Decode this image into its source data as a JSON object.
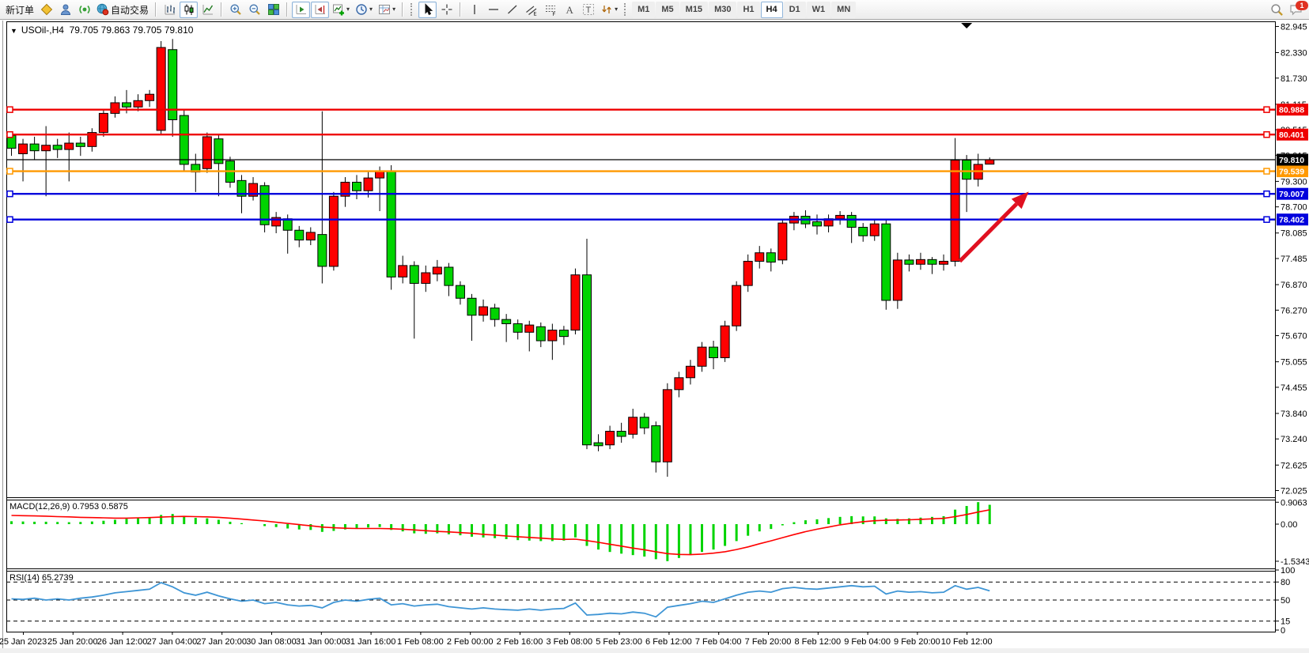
{
  "toolbar": {
    "new_order": "新订单",
    "auto_trading": "自动交易",
    "timeframes": [
      "M1",
      "M5",
      "M15",
      "M30",
      "H1",
      "H4",
      "D1",
      "W1",
      "MN"
    ],
    "active_timeframe": "H4",
    "notification_badge": "1"
  },
  "chart": {
    "symbol_title": "USOil-,H4",
    "ohlc_readout": "79.705 79.863 79.705 79.810",
    "price_axis_labels": [
      "82.945",
      "82.330",
      "81.730",
      "81.115",
      "80.515",
      "79.915",
      "79.300",
      "78.700",
      "78.085",
      "77.485",
      "76.870",
      "76.270",
      "75.670",
      "75.055",
      "74.455",
      "73.840",
      "73.240",
      "72.625",
      "72.025"
    ],
    "time_axis_labels": [
      "25 Jan 2023",
      "25 Jan 20:00",
      "26 Jan 12:00",
      "27 Jan 04:00",
      "27 Jan 20:00",
      "30 Jan 08:00",
      "31 Jan 00:00",
      "31 Jan 16:00",
      "1 Feb 08:00",
      "2 Feb 00:00",
      "2 Feb 16:00",
      "3 Feb 08:00",
      "5 Feb 23:00",
      "6 Feb 12:00",
      "7 Feb 04:00",
      "7 Feb 20:00",
      "8 Feb 12:00",
      "9 Feb 04:00",
      "9 Feb 20:00",
      "10 Feb 12:00"
    ],
    "price_lines": [
      {
        "price": 80.988,
        "label": "80.988",
        "color": "#ee0000"
      },
      {
        "price": 80.401,
        "label": "80.401",
        "color": "#ee0000"
      },
      {
        "price": 79.539,
        "label": "79.539",
        "color": "#ff9900"
      },
      {
        "price": 79.007,
        "label": "79.007",
        "color": "#0000dd"
      },
      {
        "price": 78.402,
        "label": "78.402",
        "color": "#0000dd"
      }
    ],
    "current_price": {
      "price": 79.81,
      "label": "79.810",
      "color": "#000000"
    }
  },
  "macd_panel": {
    "label": "MACD(12,26,9) 0.7953 0.5875",
    "scale_labels": [
      "0.9063",
      "0.00",
      "-1.5343"
    ]
  },
  "rsi_panel": {
    "label": "RSI(14) 65.2739",
    "scale_labels": [
      "100",
      "80",
      "50",
      "15",
      "0"
    ]
  },
  "chart_data": {
    "type": "candlestick",
    "symbol": "USOil",
    "timeframe": "H4",
    "title": "USOil-,H4 79.705 79.863 79.705 79.810",
    "note": "Chinese color convention: red = bullish, green = bearish",
    "up_color": "#fe0000",
    "down_color": "#00d400",
    "ylim": [
      72.025,
      82.945
    ],
    "ohlc": [
      [
        80.38,
        80.45,
        79.9,
        80.08
      ],
      [
        79.95,
        80.3,
        79.3,
        80.18
      ],
      [
        80.18,
        80.35,
        79.8,
        80.02
      ],
      [
        80.02,
        80.6,
        78.95,
        80.15
      ],
      [
        80.15,
        80.3,
        79.85,
        80.05
      ],
      [
        80.05,
        80.45,
        79.3,
        80.2
      ],
      [
        80.2,
        80.35,
        79.9,
        80.12
      ],
      [
        80.12,
        80.55,
        80.0,
        80.45
      ],
      [
        80.45,
        81.0,
        80.35,
        80.9
      ],
      [
        80.9,
        81.3,
        80.8,
        81.15
      ],
      [
        81.15,
        81.45,
        80.9,
        81.05
      ],
      [
        81.05,
        81.35,
        80.95,
        81.2
      ],
      [
        81.2,
        81.45,
        81.05,
        81.35
      ],
      [
        80.5,
        82.6,
        80.4,
        82.45
      ],
      [
        82.4,
        82.65,
        80.35,
        80.75
      ],
      [
        80.85,
        81.0,
        79.55,
        79.7
      ],
      [
        79.7,
        79.95,
        79.05,
        79.52
      ],
      [
        79.6,
        80.45,
        79.5,
        80.35
      ],
      [
        80.3,
        80.42,
        78.95,
        79.72
      ],
      [
        79.78,
        79.88,
        79.15,
        79.28
      ],
      [
        79.32,
        79.45,
        78.55,
        78.95
      ],
      [
        78.95,
        79.4,
        78.85,
        79.25
      ],
      [
        79.2,
        79.28,
        78.1,
        78.28
      ],
      [
        78.25,
        78.58,
        78.08,
        78.45
      ],
      [
        78.42,
        78.52,
        77.6,
        78.15
      ],
      [
        78.15,
        78.25,
        77.75,
        77.92
      ],
      [
        77.92,
        78.22,
        77.8,
        78.1
      ],
      [
        78.05,
        80.95,
        76.9,
        77.3
      ],
      [
        77.3,
        79.05,
        77.2,
        78.95
      ],
      [
        78.95,
        79.4,
        78.7,
        79.28
      ],
      [
        79.28,
        79.45,
        78.88,
        79.08
      ],
      [
        79.08,
        79.52,
        78.92,
        79.38
      ],
      [
        79.38,
        79.65,
        78.6,
        79.55
      ],
      [
        79.55,
        79.68,
        76.75,
        77.05
      ],
      [
        77.05,
        77.55,
        76.9,
        77.32
      ],
      [
        77.32,
        77.42,
        75.6,
        76.9
      ],
      [
        76.9,
        77.32,
        76.7,
        77.15
      ],
      [
        77.12,
        77.45,
        76.95,
        77.28
      ],
      [
        77.28,
        77.38,
        76.6,
        76.85
      ],
      [
        76.85,
        76.95,
        76.4,
        76.55
      ],
      [
        76.55,
        76.65,
        75.55,
        76.15
      ],
      [
        76.15,
        76.52,
        76.0,
        76.35
      ],
      [
        76.32,
        76.42,
        75.88,
        76.05
      ],
      [
        76.05,
        76.18,
        75.52,
        75.95
      ],
      [
        75.95,
        76.05,
        75.58,
        75.75
      ],
      [
        75.75,
        76.02,
        75.3,
        75.92
      ],
      [
        75.88,
        75.98,
        75.4,
        75.55
      ],
      [
        75.55,
        75.95,
        75.1,
        75.8
      ],
      [
        75.8,
        75.9,
        75.45,
        75.65
      ],
      [
        75.8,
        77.25,
        75.7,
        77.1
      ],
      [
        77.1,
        77.95,
        73.0,
        73.1
      ],
      [
        73.15,
        73.35,
        72.95,
        73.08
      ],
      [
        73.1,
        73.55,
        73.0,
        73.42
      ],
      [
        73.42,
        73.62,
        73.15,
        73.3
      ],
      [
        73.35,
        73.95,
        73.25,
        73.75
      ],
      [
        73.75,
        73.85,
        73.35,
        73.5
      ],
      [
        73.55,
        73.65,
        72.45,
        72.7
      ],
      [
        72.7,
        74.55,
        72.35,
        74.4
      ],
      [
        74.4,
        74.82,
        74.22,
        74.68
      ],
      [
        74.68,
        75.1,
        74.52,
        74.95
      ],
      [
        74.95,
        75.52,
        74.82,
        75.4
      ],
      [
        75.4,
        75.55,
        74.88,
        75.15
      ],
      [
        75.15,
        76.02,
        75.05,
        75.9
      ],
      [
        75.9,
        76.95,
        75.78,
        76.85
      ],
      [
        76.85,
        77.58,
        76.7,
        77.42
      ],
      [
        77.42,
        77.78,
        77.25,
        77.62
      ],
      [
        77.62,
        77.72,
        77.18,
        77.4
      ],
      [
        77.45,
        78.42,
        77.35,
        78.32
      ],
      [
        78.32,
        78.58,
        78.15,
        78.48
      ],
      [
        78.48,
        78.62,
        78.2,
        78.3
      ],
      [
        78.35,
        78.52,
        78.05,
        78.25
      ],
      [
        78.25,
        78.52,
        78.1,
        78.42
      ],
      [
        78.42,
        78.6,
        78.28,
        78.5
      ],
      [
        78.5,
        78.58,
        77.85,
        78.22
      ],
      [
        78.22,
        78.32,
        77.88,
        78.02
      ],
      [
        78.02,
        78.42,
        77.9,
        78.3
      ],
      [
        78.3,
        78.4,
        76.28,
        76.5
      ],
      [
        76.5,
        77.62,
        76.3,
        77.45
      ],
      [
        77.45,
        77.58,
        77.18,
        77.35
      ],
      [
        77.35,
        77.62,
        77.22,
        77.46
      ],
      [
        77.46,
        77.52,
        77.12,
        77.35
      ],
      [
        77.35,
        77.58,
        77.2,
        77.42
      ],
      [
        77.42,
        80.32,
        77.3,
        79.8
      ],
      [
        79.8,
        79.92,
        78.58,
        79.35
      ],
      [
        79.35,
        79.95,
        79.18,
        79.7
      ],
      [
        79.705,
        79.863,
        79.705,
        79.81
      ]
    ],
    "indicators": {
      "macd": {
        "params": "12,26,9",
        "main_current": 0.7953,
        "signal_current": 0.5875,
        "max": 0.9063,
        "min": -1.5343,
        "histogram_color": "#00d400",
        "signal_color": "#ff0000",
        "main": [
          0.12,
          0.11,
          0.1,
          0.1,
          0.09,
          0.08,
          0.09,
          0.11,
          0.14,
          0.18,
          0.22,
          0.25,
          0.28,
          0.38,
          0.42,
          0.34,
          0.26,
          0.24,
          0.18,
          0.1,
          0.04,
          0.0,
          -0.08,
          -0.12,
          -0.18,
          -0.22,
          -0.24,
          -0.32,
          -0.28,
          -0.22,
          -0.18,
          -0.14,
          -0.12,
          -0.24,
          -0.3,
          -0.38,
          -0.4,
          -0.38,
          -0.42,
          -0.46,
          -0.52,
          -0.55,
          -0.58,
          -0.62,
          -0.66,
          -0.68,
          -0.7,
          -0.7,
          -0.68,
          -0.55,
          -0.9,
          -1.05,
          -1.15,
          -1.22,
          -1.28,
          -1.34,
          -1.45,
          -1.53,
          -1.4,
          -1.28,
          -1.15,
          -1.05,
          -0.9,
          -0.7,
          -0.48,
          -0.3,
          -0.2,
          -0.05,
          0.08,
          0.16,
          0.2,
          0.25,
          0.3,
          0.33,
          0.32,
          0.32,
          0.24,
          0.22,
          0.24,
          0.27,
          0.3,
          0.33,
          0.6,
          0.75,
          0.91,
          0.8
        ],
        "signal": [
          0.36,
          0.35,
          0.34,
          0.33,
          0.31,
          0.3,
          0.28,
          0.27,
          0.26,
          0.25,
          0.25,
          0.26,
          0.27,
          0.29,
          0.31,
          0.32,
          0.31,
          0.3,
          0.28,
          0.25,
          0.21,
          0.17,
          0.13,
          0.08,
          0.03,
          -0.02,
          -0.07,
          -0.12,
          -0.15,
          -0.17,
          -0.18,
          -0.18,
          -0.18,
          -0.19,
          -0.21,
          -0.24,
          -0.27,
          -0.3,
          -0.32,
          -0.35,
          -0.38,
          -0.42,
          -0.45,
          -0.49,
          -0.52,
          -0.55,
          -0.58,
          -0.61,
          -0.63,
          -0.62,
          -0.68,
          -0.75,
          -0.83,
          -0.91,
          -0.99,
          -1.06,
          -1.14,
          -1.22,
          -1.25,
          -1.26,
          -1.24,
          -1.2,
          -1.14,
          -1.05,
          -0.94,
          -0.81,
          -0.69,
          -0.56,
          -0.43,
          -0.31,
          -0.21,
          -0.12,
          -0.03,
          0.04,
          0.1,
          0.14,
          0.16,
          0.17,
          0.18,
          0.2,
          0.22,
          0.24,
          0.31,
          0.4,
          0.5,
          0.59
        ]
      },
      "rsi": {
        "params": "14",
        "current": 65.2739,
        "color": "#3e95d5",
        "levels": [
          80,
          50,
          15
        ],
        "values": [
          52,
          51,
          53,
          50,
          52,
          50,
          53,
          55,
          58,
          62,
          64,
          66,
          68,
          79,
          72,
          62,
          58,
          63,
          57,
          52,
          48,
          50,
          44,
          46,
          42,
          40,
          41,
          37,
          46,
          50,
          48,
          51,
          53,
          42,
          44,
          40,
          42,
          43,
          39,
          37,
          35,
          37,
          35,
          34,
          33,
          35,
          33,
          35,
          36,
          45,
          25,
          26,
          28,
          27,
          30,
          28,
          22,
          38,
          41,
          44,
          48,
          46,
          52,
          58,
          63,
          65,
          63,
          69,
          71,
          69,
          68,
          70,
          72,
          74,
          72,
          73,
          60,
          65,
          63,
          64,
          62,
          63,
          74,
          68,
          71,
          65.27
        ]
      }
    },
    "annotations": {
      "trend_arrow": {
        "from_bar": 82.4,
        "from_price": 77.42,
        "to_bar": 88.4,
        "to_price": 79.06,
        "color": "#e01020"
      },
      "shift_marker": {
        "bar": 83
      }
    }
  }
}
